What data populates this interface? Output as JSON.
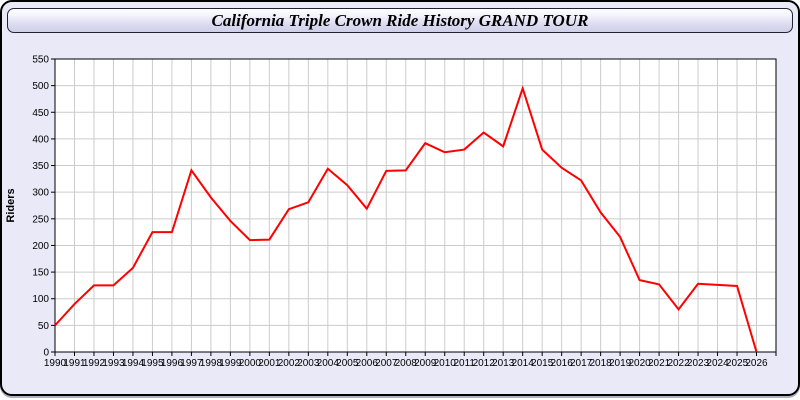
{
  "window": {
    "title": "California Triple Crown Ride History GRAND TOUR"
  },
  "theme": {
    "page_background": "#FFFFFF",
    "panel_background": "#E9E9F8",
    "panel_border": "#000000",
    "titlebar_gradient_top": "#FFFFFF",
    "titlebar_gradient_bottom": "#CFCFE9",
    "plot_background": "#FFFFFF",
    "plot_border": "#000000",
    "grid_color": "#CCCCCC",
    "line_color": "#FF0000",
    "text_color": "#000000"
  },
  "chart_data": {
    "type": "line",
    "title": "California Triple Crown Ride History GRAND TOUR",
    "xlabel": "",
    "ylabel": "Riders",
    "ylim": [
      0,
      550
    ],
    "ytick_step": 50,
    "yticks": [
      0,
      50,
      100,
      150,
      200,
      250,
      300,
      350,
      400,
      450,
      500,
      550
    ],
    "grid": true,
    "legend_position": "none",
    "x": [
      1990,
      1991,
      1992,
      1993,
      1994,
      1995,
      1996,
      1997,
      1998,
      1999,
      2000,
      2001,
      2002,
      2003,
      2004,
      2005,
      2006,
      2007,
      2008,
      2009,
      2010,
      2011,
      2012,
      2013,
      2014,
      2015,
      2016,
      2017,
      2018,
      2019,
      2020,
      2021,
      2022,
      2023,
      2024,
      2025,
      2026
    ],
    "series": [
      {
        "name": "Riders",
        "color": "#FF0000",
        "values": [
          50,
          90,
          125,
          125,
          158,
          225,
          225,
          341,
          290,
          246,
          210,
          211,
          268,
          281,
          344,
          313,
          269,
          340,
          341,
          392,
          375,
          380,
          412,
          386,
          495,
          380,
          346,
          322,
          262,
          216,
          135,
          127,
          80,
          128,
          126,
          124,
          0
        ]
      }
    ]
  }
}
